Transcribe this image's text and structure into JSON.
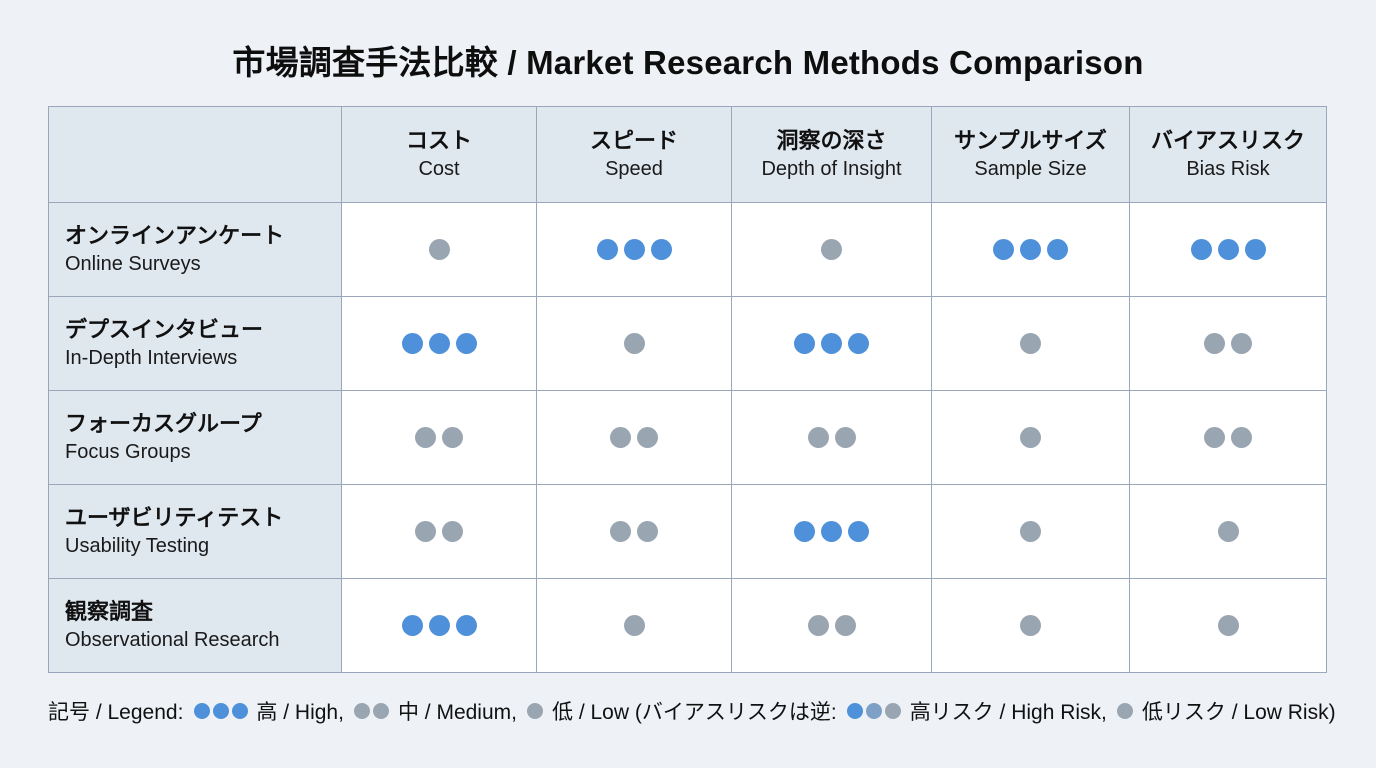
{
  "title": "市場調査手法比較 / Market Research Methods Comparison",
  "colors": {
    "blue": "#4E90D9",
    "gray": "#9AA5B2",
    "blueGray": "#7FA0C6",
    "headerBg": "#DFE7EF",
    "pageBg": "#EEF2F7",
    "border": "#9AA7BA"
  },
  "table": {
    "columns": [
      {
        "jp": "コスト",
        "en": "Cost"
      },
      {
        "jp": "スピード",
        "en": "Speed"
      },
      {
        "jp": "洞察の深さ",
        "en": "Depth of Insight"
      },
      {
        "jp": "サンプルサイズ",
        "en": "Sample Size"
      },
      {
        "jp": "バイアスリスク",
        "en": "Bias Risk"
      }
    ],
    "rows": [
      {
        "jp": "オンラインアンケート",
        "en": "Online Surveys",
        "cells": [
          {
            "count": 1,
            "color": "gray"
          },
          {
            "count": 3,
            "color": "blue"
          },
          {
            "count": 1,
            "color": "gray"
          },
          {
            "count": 3,
            "color": "blue"
          },
          {
            "count": 3,
            "color": "blue"
          }
        ]
      },
      {
        "jp": "デプスインタビュー",
        "en": "In-Depth Interviews",
        "cells": [
          {
            "count": 3,
            "color": "blue"
          },
          {
            "count": 1,
            "color": "gray"
          },
          {
            "count": 3,
            "color": "blue"
          },
          {
            "count": 1,
            "color": "gray"
          },
          {
            "count": 2,
            "color": "gray"
          }
        ]
      },
      {
        "jp": "フォーカスグループ",
        "en": "Focus Groups",
        "cells": [
          {
            "count": 2,
            "color": "gray"
          },
          {
            "count": 2,
            "color": "gray"
          },
          {
            "count": 2,
            "color": "gray"
          },
          {
            "count": 1,
            "color": "gray"
          },
          {
            "count": 2,
            "color": "gray"
          }
        ]
      },
      {
        "jp": "ユーザビリティテスト",
        "en": "Usability Testing",
        "cells": [
          {
            "count": 2,
            "color": "gray"
          },
          {
            "count": 2,
            "color": "gray"
          },
          {
            "count": 3,
            "color": "blue"
          },
          {
            "count": 1,
            "color": "gray"
          },
          {
            "count": 1,
            "color": "gray"
          }
        ]
      },
      {
        "jp": "観察調査",
        "en": "Observational Research",
        "cells": [
          {
            "count": 3,
            "color": "blue"
          },
          {
            "count": 1,
            "color": "gray"
          },
          {
            "count": 2,
            "color": "gray"
          },
          {
            "count": 1,
            "color": "gray"
          },
          {
            "count": 1,
            "color": "gray"
          }
        ]
      }
    ]
  },
  "legend": {
    "prefix": "記号 / Legend:",
    "items": [
      {
        "dots": [
          "blue",
          "blue",
          "blue"
        ],
        "label": "高 / High,"
      },
      {
        "dots": [
          "gray",
          "gray"
        ],
        "label": "中 / Medium,"
      },
      {
        "dots": [
          "gray"
        ],
        "label": "低 / Low (バイアスリスクは逆:"
      },
      {
        "dots": [
          "blue",
          "blueGray",
          "gray"
        ],
        "label": "高リスク / High Risk,"
      },
      {
        "dots": [
          "gray"
        ],
        "label": "低リスク / Low Risk)"
      }
    ]
  },
  "chart_data": {
    "type": "table",
    "title": "市場調査手法比較 / Market Research Methods Comparison",
    "columns": [
      "コスト Cost",
      "スピード Speed",
      "洞察の深さ Depth of Insight",
      "サンプルサイズ Sample Size",
      "バイアスリスク Bias Risk"
    ],
    "rows": [
      {
        "method": "オンラインアンケート / Online Surveys",
        "ratings": [
          1,
          3,
          1,
          3,
          3
        ],
        "rating_colors": [
          "gray",
          "blue",
          "gray",
          "blue",
          "blue"
        ]
      },
      {
        "method": "デプスインタビュー / In-Depth Interviews",
        "ratings": [
          3,
          1,
          3,
          1,
          2
        ],
        "rating_colors": [
          "blue",
          "gray",
          "blue",
          "gray",
          "gray"
        ]
      },
      {
        "method": "フォーカスグループ / Focus Groups",
        "ratings": [
          2,
          2,
          2,
          1,
          2
        ],
        "rating_colors": [
          "gray",
          "gray",
          "gray",
          "gray",
          "gray"
        ]
      },
      {
        "method": "ユーザビリティテスト / Usability Testing",
        "ratings": [
          2,
          2,
          3,
          1,
          1
        ],
        "rating_colors": [
          "gray",
          "gray",
          "blue",
          "gray",
          "gray"
        ]
      },
      {
        "method": "観察調査 / Observational Research",
        "ratings": [
          3,
          1,
          2,
          1,
          1
        ],
        "rating_colors": [
          "blue",
          "gray",
          "gray",
          "gray",
          "gray"
        ]
      }
    ],
    "legend": "記号 / Legend: ●●● 高 / High, ●● 中 / Medium, ● 低 / Low (バイアスリスクは逆: ●●● 高リスク / High Risk, ● 低リスク / Low Risk)"
  }
}
